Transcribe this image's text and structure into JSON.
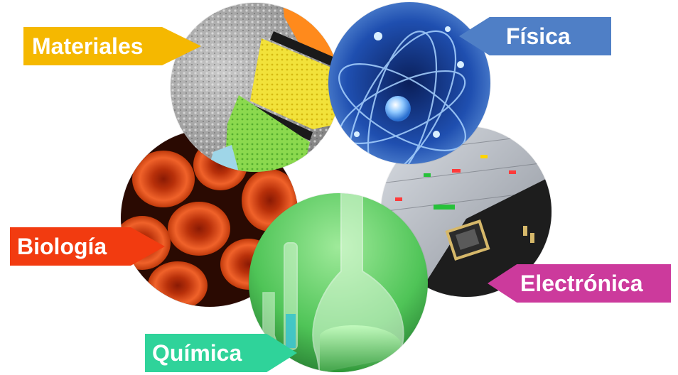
{
  "labels": {
    "materiales": "Materiales",
    "fisica": "Física",
    "biologia": "Biología",
    "electronica": "Electrónica",
    "quimica": "Química"
  },
  "colors": {
    "materiales": "#f5b800",
    "fisica": "#4f7fc6",
    "biologia": "#f23b10",
    "electronica": "#cc3a9c",
    "quimica": "#2fd39a"
  }
}
